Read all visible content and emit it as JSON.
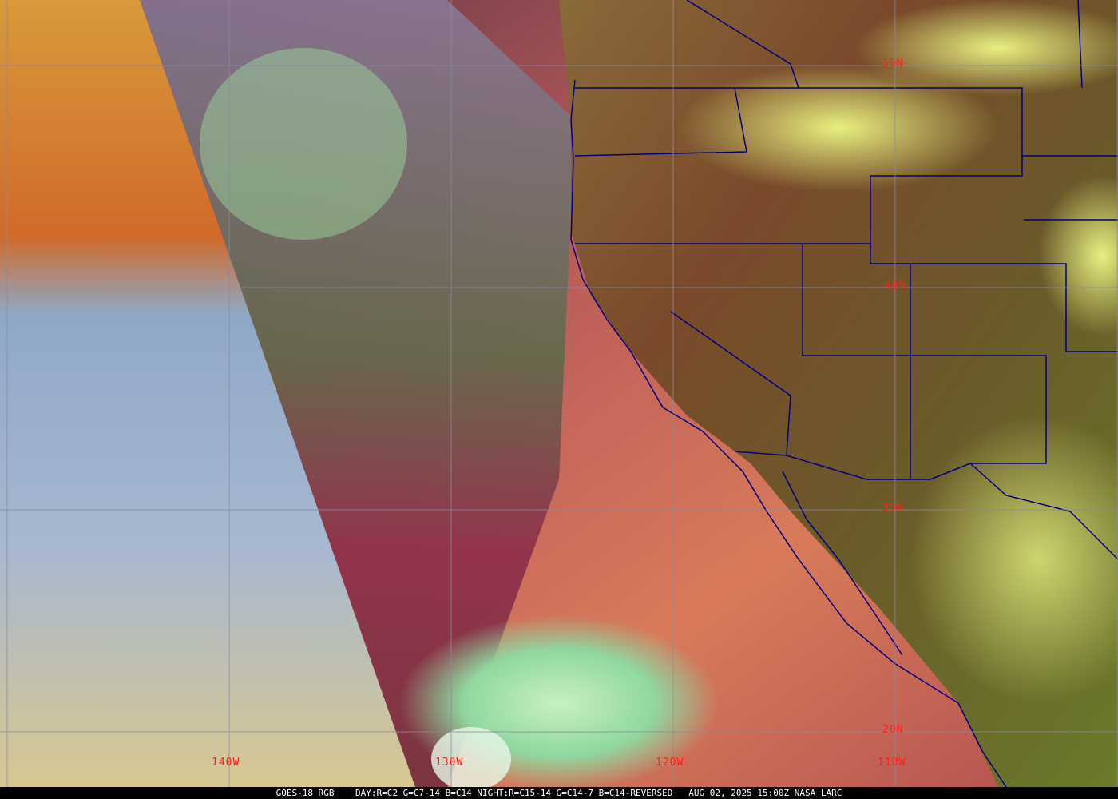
{
  "grid_labels": {
    "lat": [
      "50N",
      "40N",
      "30N",
      "20N"
    ],
    "lon": [
      "140W",
      "130W",
      "120W",
      "110W"
    ]
  },
  "caption": {
    "satellite": "GOES-18 RGB",
    "recipe": "DAY:R=C2 G=C7-14 B=C14 NIGHT:R=C15-14 G=C14-7 B=C14-REVERSED",
    "datetime": "AUG 02, 2025 15:00Z",
    "credit": "NASA LARC"
  },
  "colors": {
    "grid": "#8a8aa0",
    "borders": "#000080",
    "labels": "#ff2020"
  }
}
